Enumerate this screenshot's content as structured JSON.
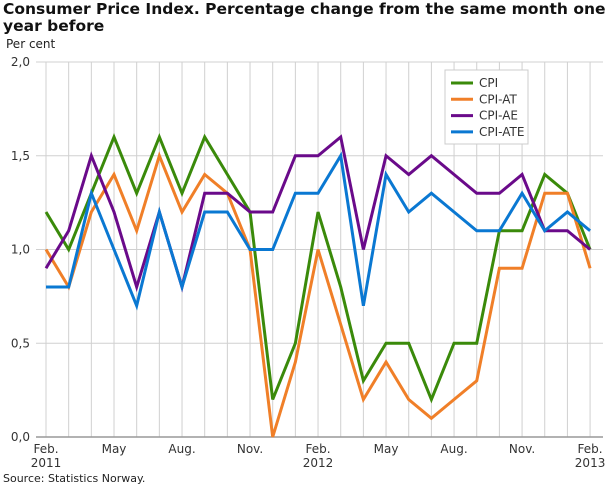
{
  "title": "Consumer Price Index. Percentage change from the same month one year before",
  "source": "Source: Statistics Norway.",
  "chart_data": {
    "type": "line",
    "title": "Consumer Price Index. Percentage change from the same month one year before",
    "ylabel": "Per cent",
    "ylim": [
      0,
      2
    ],
    "yticks": [
      "0,0",
      "0,5",
      "1,0",
      "1,5",
      "2,0"
    ],
    "x": [
      "2011-02",
      "2011-03",
      "2011-04",
      "2011-05",
      "2011-06",
      "2011-07",
      "2011-08",
      "2011-09",
      "2011-10",
      "2011-11",
      "2011-12",
      "2012-01",
      "2012-02",
      "2012-03",
      "2012-04",
      "2012-05",
      "2012-06",
      "2012-07",
      "2012-08",
      "2012-09",
      "2012-10",
      "2012-11",
      "2012-12",
      "2013-01",
      "2013-02"
    ],
    "xticks": [
      {
        "i": 0,
        "label": "Feb.",
        "sub": "2011"
      },
      {
        "i": 3,
        "label": "May"
      },
      {
        "i": 6,
        "label": "Aug."
      },
      {
        "i": 9,
        "label": "Nov."
      },
      {
        "i": 12,
        "label": "Feb.",
        "sub": "2012"
      },
      {
        "i": 15,
        "label": "May"
      },
      {
        "i": 18,
        "label": "Aug."
      },
      {
        "i": 21,
        "label": "Nov."
      },
      {
        "i": 24,
        "label": "Feb.",
        "sub": "2013"
      }
    ],
    "grid": true,
    "legend": "top-right",
    "series": [
      {
        "name": "CPI",
        "color": "#3a8a0a",
        "values": [
          1.2,
          1.0,
          1.3,
          1.6,
          1.3,
          1.6,
          1.3,
          1.6,
          1.4,
          1.2,
          0.2,
          0.5,
          1.2,
          0.8,
          0.3,
          0.5,
          0.5,
          0.2,
          0.5,
          0.5,
          1.1,
          1.1,
          1.4,
          1.3,
          1.0
        ]
      },
      {
        "name": "CPI-AT",
        "color": "#f07f28",
        "values": [
          1.0,
          0.8,
          1.2,
          1.4,
          1.1,
          1.5,
          1.2,
          1.4,
          1.3,
          1.0,
          0.0,
          0.4,
          1.0,
          0.6,
          0.2,
          0.4,
          0.2,
          0.1,
          0.2,
          0.3,
          0.9,
          0.9,
          1.3,
          1.3,
          0.9
        ]
      },
      {
        "name": "CPI-AE",
        "color": "#6a0a8a",
        "values": [
          0.9,
          1.1,
          1.5,
          1.2,
          0.8,
          1.2,
          0.8,
          1.3,
          1.3,
          1.2,
          1.2,
          1.5,
          1.5,
          1.6,
          1.0,
          1.5,
          1.4,
          1.5,
          1.4,
          1.3,
          1.3,
          1.4,
          1.1,
          1.1,
          1.0
        ]
      },
      {
        "name": "CPI-ATE",
        "color": "#0a78d2",
        "values": [
          0.8,
          0.8,
          1.3,
          1.0,
          0.7,
          1.2,
          0.8,
          1.2,
          1.2,
          1.0,
          1.0,
          1.3,
          1.3,
          1.5,
          0.7,
          1.4,
          1.2,
          1.3,
          1.2,
          1.1,
          1.1,
          1.3,
          1.1,
          1.2,
          1.1
        ]
      }
    ]
  }
}
